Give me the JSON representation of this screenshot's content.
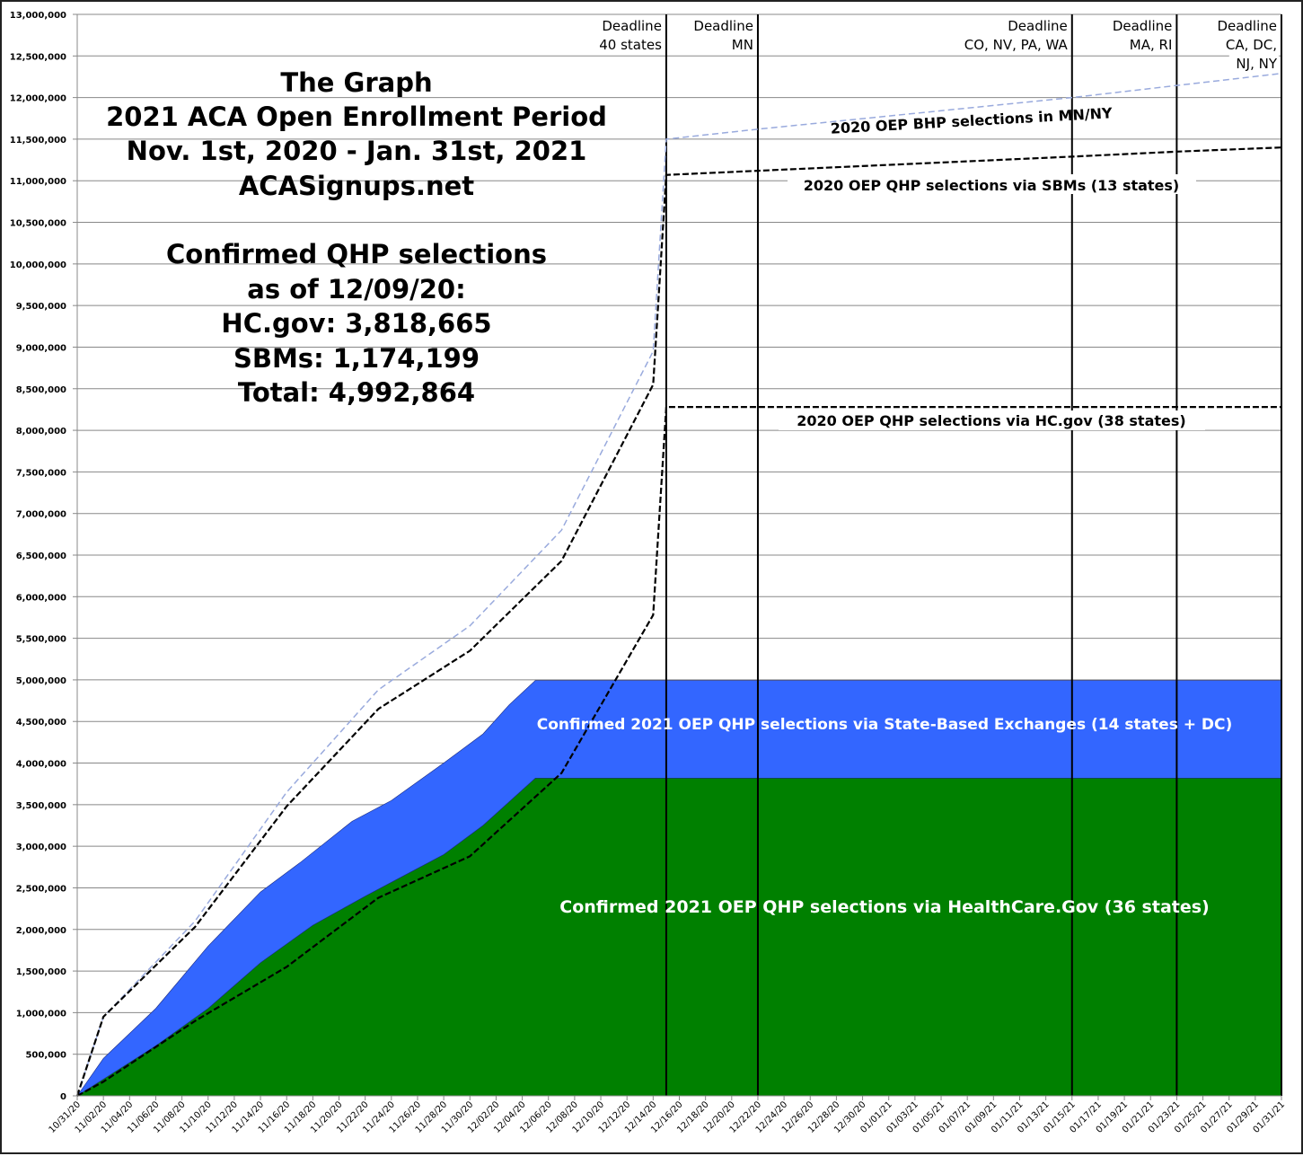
{
  "chart_data": {
    "type": "area",
    "title_lines": [
      "The Graph",
      "2021 ACA Open Enrollment Period",
      "Nov. 1st, 2020 - Jan. 31st, 2021",
      "ACASignups.net"
    ],
    "summary_lines": [
      "Confirmed QHP selections",
      "as of 12/09/20:",
      "HC.gov: 3,818,665",
      "SBMs: 1,174,199",
      "Total: 4,992,864"
    ],
    "ylim": [
      0,
      13000000
    ],
    "yticks": [
      0,
      500000,
      1000000,
      1500000,
      2000000,
      2500000,
      3000000,
      3500000,
      4000000,
      4500000,
      5000000,
      5500000,
      6000000,
      6500000,
      7000000,
      7500000,
      8000000,
      8500000,
      9000000,
      9500000,
      10000000,
      10500000,
      11000000,
      11500000,
      12000000,
      12500000,
      13000000
    ],
    "xlim": [
      "10/31/20",
      "01/31/21"
    ],
    "xticks": [
      "10/31/20",
      "11/02/20",
      "11/04/20",
      "11/06/20",
      "11/08/20",
      "11/10/20",
      "11/12/20",
      "11/14/20",
      "11/16/20",
      "11/18/20",
      "11/20/20",
      "11/22/20",
      "11/24/20",
      "11/26/20",
      "11/28/20",
      "11/30/20",
      "12/02/20",
      "12/04/20",
      "12/06/20",
      "12/08/20",
      "12/10/20",
      "12/12/20",
      "12/14/20",
      "12/16/20",
      "12/18/20",
      "12/20/20",
      "12/22/20",
      "12/24/20",
      "12/26/20",
      "12/28/20",
      "12/30/20",
      "01/01/21",
      "01/03/21",
      "01/05/21",
      "01/07/21",
      "01/09/21",
      "01/11/21",
      "01/13/21",
      "01/15/21",
      "01/17/21",
      "01/19/21",
      "01/21/21",
      "01/23/21",
      "01/25/21",
      "01/27/21",
      "01/29/21",
      "01/31/21"
    ],
    "grid": true,
    "areas": [
      {
        "name": "Confirmed 2021 OEP QHP selections via State-Based Exchanges (14 states + DC)",
        "color": "#3366ff",
        "points": [
          [
            "10/31/20",
            0
          ],
          [
            "11/02/20",
            450000
          ],
          [
            "11/06/20",
            1050000
          ],
          [
            "11/10/20",
            1800000
          ],
          [
            "11/14/20",
            2450000
          ],
          [
            "11/17/20",
            2800000
          ],
          [
            "11/21/20",
            3300000
          ],
          [
            "11/24/20",
            3550000
          ],
          [
            "11/28/20",
            4000000
          ],
          [
            "12/01/20",
            4350000
          ],
          [
            "12/03/20",
            4700000
          ],
          [
            "12/05/20",
            4992864
          ],
          [
            "01/31/21",
            4992864
          ]
        ]
      },
      {
        "name": "Confirmed 2021 OEP QHP selections via HealthCare.Gov (36 states)",
        "color": "#008000",
        "points": [
          [
            "10/31/20",
            0
          ],
          [
            "11/02/20",
            200000
          ],
          [
            "11/06/20",
            600000
          ],
          [
            "11/10/20",
            1050000
          ],
          [
            "11/14/20",
            1600000
          ],
          [
            "11/18/20",
            2050000
          ],
          [
            "11/22/20",
            2400000
          ],
          [
            "11/25/20",
            2650000
          ],
          [
            "11/28/20",
            2900000
          ],
          [
            "12/01/20",
            3250000
          ],
          [
            "12/05/20",
            3818665
          ],
          [
            "01/31/21",
            3818665
          ]
        ]
      }
    ],
    "lines": [
      {
        "name": "2020 OEP BHP selections in MN/NY",
        "color": "#99aadd",
        "points": [
          [
            "10/31/20",
            0
          ],
          [
            "11/02/20",
            950000
          ],
          [
            "11/09/20",
            2100000
          ],
          [
            "11/16/20",
            3650000
          ],
          [
            "11/23/20",
            4880000
          ],
          [
            "11/30/20",
            5650000
          ],
          [
            "12/07/20",
            6800000
          ],
          [
            "12/14/20",
            8950000
          ],
          [
            "12/15/20",
            11500000
          ],
          [
            "12/22/20",
            11620000
          ],
          [
            "01/15/21",
            12000000
          ],
          [
            "01/31/21",
            12290000
          ]
        ]
      },
      {
        "name": "2020 OEP QHP selections via SBMs (13 states)",
        "color": "#000000",
        "points": [
          [
            "10/31/20",
            0
          ],
          [
            "11/02/20",
            950000
          ],
          [
            "11/09/20",
            2030000
          ],
          [
            "11/16/20",
            3480000
          ],
          [
            "11/23/20",
            4650000
          ],
          [
            "11/30/20",
            5350000
          ],
          [
            "12/07/20",
            6430000
          ],
          [
            "12/14/20",
            8550000
          ],
          [
            "12/15/20",
            11070000
          ],
          [
            "12/22/20",
            11120000
          ],
          [
            "01/15/21",
            11290000
          ],
          [
            "01/23/21",
            11350000
          ],
          [
            "01/31/21",
            11400000
          ]
        ]
      },
      {
        "name": "2020 OEP QHP selections via HC.gov (38 states)",
        "color": "#000000",
        "points": [
          [
            "10/31/20",
            0
          ],
          [
            "11/02/20",
            170000
          ],
          [
            "11/09/20",
            900000
          ],
          [
            "11/16/20",
            1550000
          ],
          [
            "11/23/20",
            2380000
          ],
          [
            "11/30/20",
            2880000
          ],
          [
            "12/07/20",
            3880000
          ],
          [
            "12/14/20",
            5780000
          ],
          [
            "12/15/20",
            8280000
          ],
          [
            "01/31/21",
            8280000
          ]
        ]
      }
    ],
    "deadlines": [
      {
        "date": "12/15/20",
        "lines": [
          "Deadline",
          "40 states"
        ]
      },
      {
        "date": "12/22/20",
        "lines": [
          "Deadline",
          "MN"
        ]
      },
      {
        "date": "01/15/21",
        "lines": [
          "Deadline",
          "CO, NV, PA, WA"
        ]
      },
      {
        "date": "01/23/21",
        "lines": [
          "Deadline",
          "MA, RI"
        ]
      },
      {
        "date": "01/31/21",
        "lines": [
          "Deadline",
          "CA, DC,",
          "NJ, NY"
        ]
      }
    ]
  }
}
